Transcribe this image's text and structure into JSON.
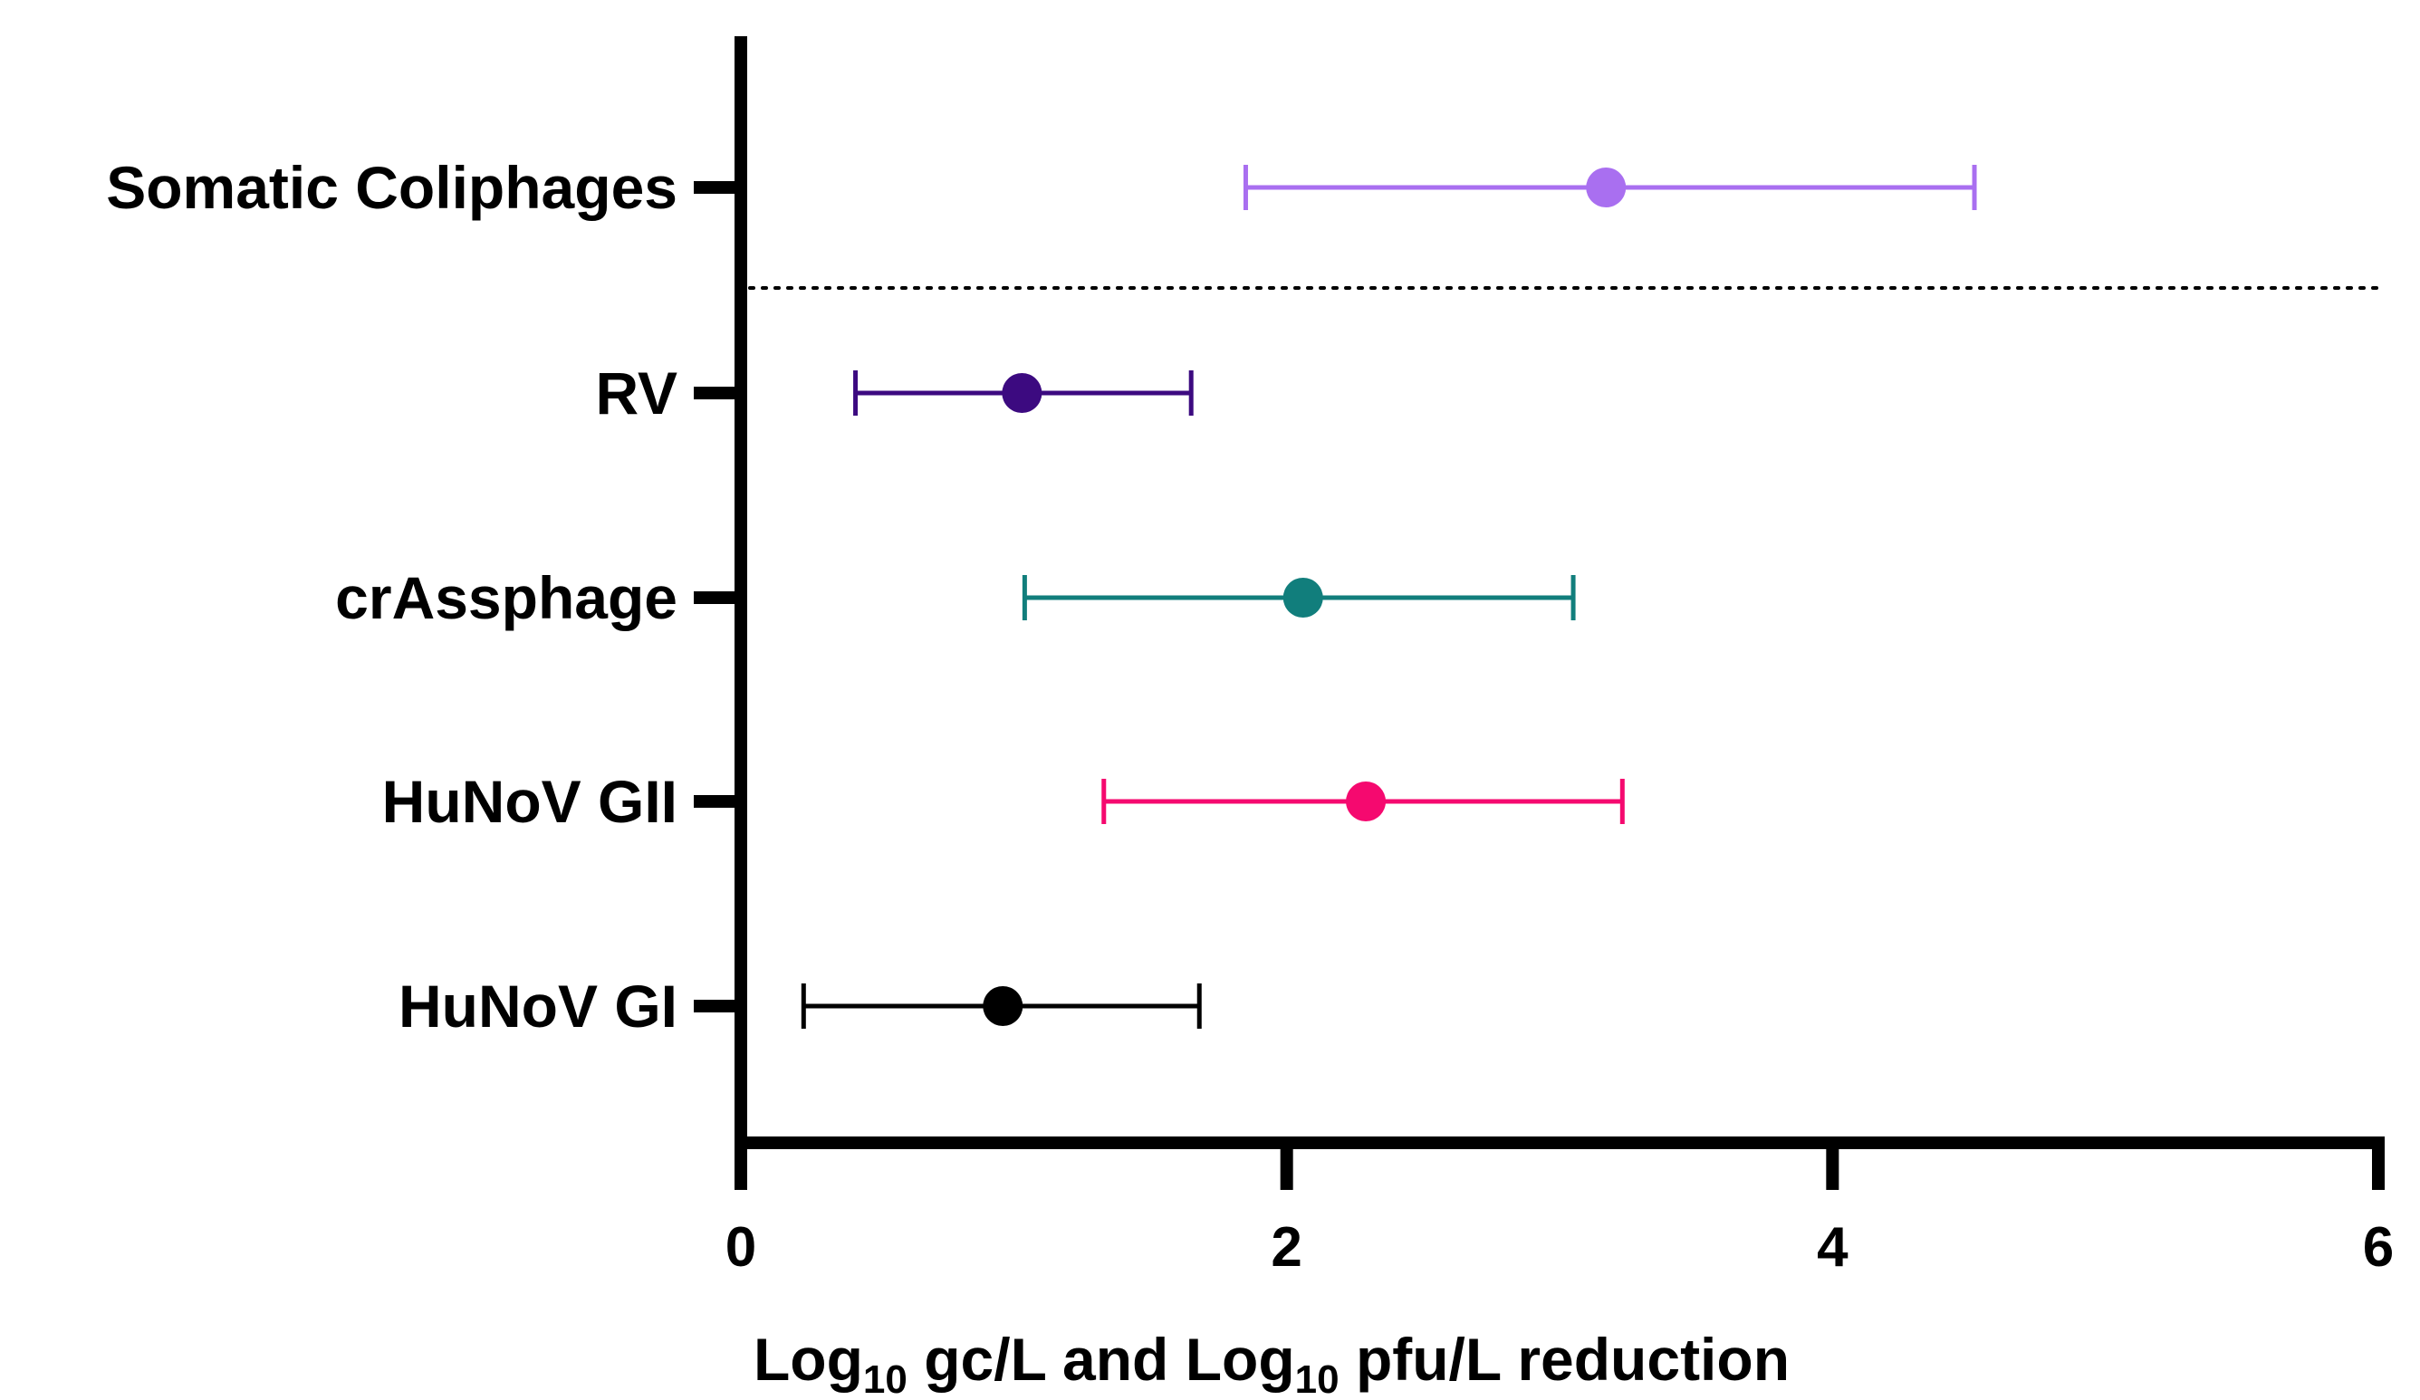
{
  "chart_data": {
    "type": "forest",
    "title": "",
    "xlabel_parts": [
      {
        "text": "Log",
        "sub": false
      },
      {
        "text": "10",
        "sub": true
      },
      {
        "text": " gc/L and Log",
        "sub": false
      },
      {
        "text": "10",
        "sub": true
      },
      {
        "text": " pfu/L reduction",
        "sub": false
      }
    ],
    "xlim": [
      0,
      6
    ],
    "xticks": [
      0,
      2,
      4,
      6
    ],
    "xtick_labels": [
      "0",
      "2",
      "4",
      "6"
    ],
    "grid": false,
    "separator": {
      "style": "dotted",
      "between": [
        "Somatic Coliphages",
        "RV"
      ]
    },
    "series": [
      {
        "name": "Somatic Coliphages",
        "mean": 3.17,
        "low": 1.85,
        "high": 4.52,
        "color": "#a96ff0"
      },
      {
        "name": "RV",
        "mean": 1.03,
        "low": 0.42,
        "high": 1.65,
        "color": "#3c0a80"
      },
      {
        "name": "crAssphage",
        "mean": 2.06,
        "low": 1.04,
        "high": 3.05,
        "color": "#117e7c"
      },
      {
        "name": "HuNoV GII",
        "mean": 2.29,
        "low": 1.33,
        "high": 3.23,
        "color": "#f5096f"
      },
      {
        "name": "HuNoV GI",
        "mean": 0.96,
        "low": 0.23,
        "high": 1.68,
        "color": "#000000"
      }
    ]
  }
}
